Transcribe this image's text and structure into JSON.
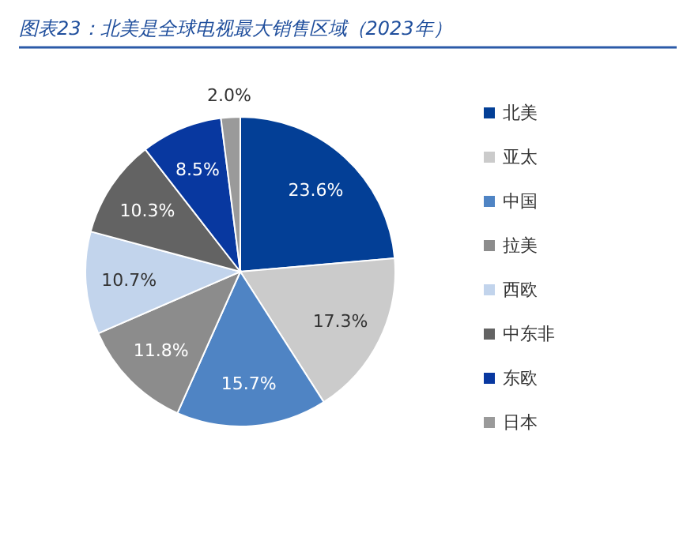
{
  "chart_data": {
    "type": "pie",
    "title": "图表23：北美是全球电视最大销售区域（2023年）",
    "categories": [
      "北美",
      "亚太",
      "中国",
      "拉美",
      "西欧",
      "中东非",
      "东欧",
      "日本"
    ],
    "values": [
      23.6,
      17.3,
      15.7,
      11.8,
      10.7,
      10.3,
      8.5,
      2.0
    ],
    "colors": [
      "#033f96",
      "#cbcbcb",
      "#4f84c4",
      "#8c8c8c",
      "#c2d4ec",
      "#636363",
      "#0838a0",
      "#9a9a9a"
    ],
    "value_labels": [
      "23.6%",
      "17.3%",
      "15.7%",
      "11.8%",
      "10.7%",
      "10.3%",
      "8.5%",
      "2.0%"
    ],
    "legend": "right"
  }
}
